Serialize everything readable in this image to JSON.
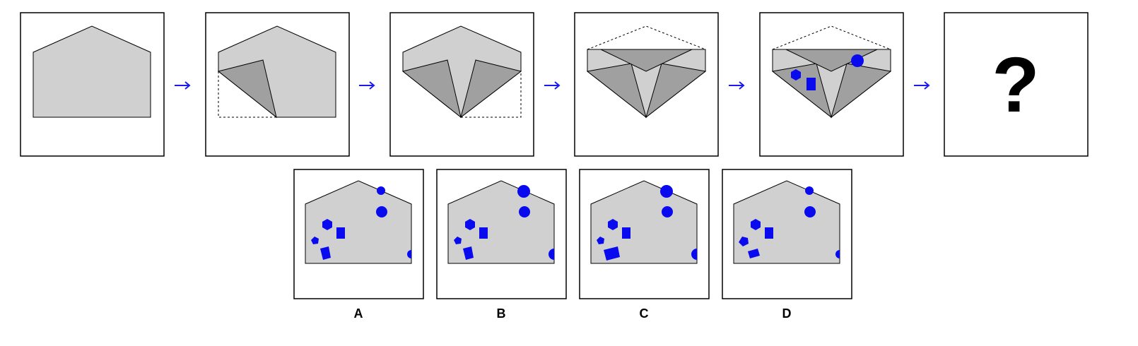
{
  "puzzle": {
    "question_mark": "?",
    "options": [
      {
        "label": "A"
      },
      {
        "label": "B"
      },
      {
        "label": "C"
      },
      {
        "label": "D"
      }
    ]
  },
  "colors": {
    "paper": "#d0d0d0",
    "paper_fold": "#a0a0a0",
    "outline": "#000000",
    "marker": "#0a0aee",
    "arrow": "#1a1aee"
  }
}
